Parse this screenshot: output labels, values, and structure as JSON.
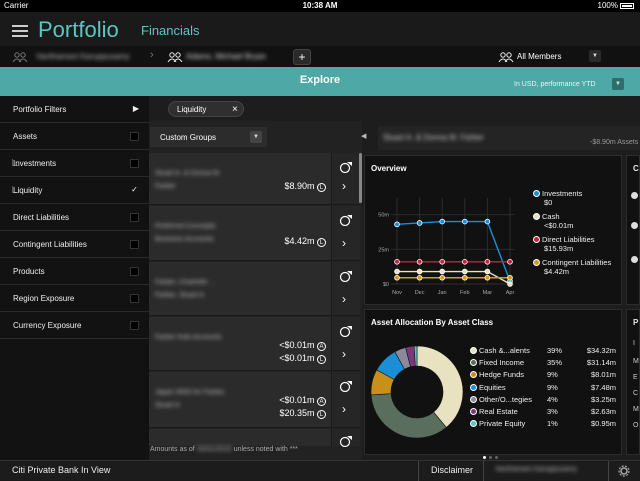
{
  "status": {
    "carrier": "Carrier",
    "time": "10:38 AM",
    "battery": "100%"
  },
  "app": {
    "title": "Portfolio",
    "subtitle": "Financials"
  },
  "clientbar": {
    "crumb1": "Vanthamani Karuppusamy",
    "crumb2": "Adams, Michael Bryan",
    "add": "+",
    "members": "All Members"
  },
  "explore": {
    "title": "Explore",
    "currency": "In USD, performance YTD"
  },
  "sidebar": {
    "filters_label": "Portfolio Filters",
    "items": [
      {
        "label": "Assets",
        "checked": false
      },
      {
        "label": "Investments",
        "checked": false
      },
      {
        "label": "Liquidity",
        "checked": true
      },
      {
        "label": "Direct Liabilities",
        "checked": false
      },
      {
        "label": "Contingent Liabilities",
        "checked": false
      },
      {
        "label": "Products",
        "checked": false
      },
      {
        "label": "Region Exposure",
        "checked": false
      },
      {
        "label": "Currency Exposure",
        "checked": false
      }
    ]
  },
  "filter_pill": {
    "label": "Liquidity",
    "close": "×"
  },
  "groups": {
    "header": "Custom Groups",
    "selected_name": "Stuart A. & Donna M. Farber",
    "selected_total": "-$8.90m Assets",
    "rows": [
      {
        "name1": "Stuart A. & Donna M.",
        "name2": "Farber",
        "values": [
          "$8.90m"
        ],
        "badges": [
          "L"
        ]
      },
      {
        "name1": "Preferred Concepts",
        "name2": "Business Accounts",
        "values": [
          "$4.42m"
        ],
        "badges": [
          "L"
        ]
      },
      {
        "name1": "Farber, Charlotte ...",
        "name2": "Farber, Stuart A",
        "values": [],
        "badges": []
      },
      {
        "name1": "Farber Kids Accounts",
        "name2": "",
        "values": [
          "<$0.01m",
          "<$0.01m"
        ],
        "badges": [
          "A",
          "L"
        ]
      },
      {
        "name1": "Japan 9093 for Farber,",
        "name2": "Stuart A",
        "values": [
          "<$0.01m",
          "$20.35m"
        ],
        "badges": [
          "A",
          "L"
        ]
      }
    ],
    "amounts_note_a": "Amounts as of",
    "amounts_note_date": "03/31/2015",
    "amounts_note_b": "unless noted with ***"
  },
  "overview": {
    "title": "Overview",
    "legend": [
      {
        "name": "Investments",
        "value": "$0",
        "color": "#1a8fd6"
      },
      {
        "name": "Cash",
        "value": "<$0.01m",
        "color": "#e8e2c0"
      },
      {
        "name": "Direct Liabilities",
        "value": "$15.93m",
        "color": "#c8203a"
      },
      {
        "name": "Contingent Liabilities",
        "value": "$4.42m",
        "color": "#d99a1c"
      }
    ]
  },
  "allocation": {
    "title": "Asset Allocation By Asset Class",
    "rows": [
      {
        "name": "Cash &...alents",
        "pct": "39%",
        "amt": "$34.32m",
        "color": "#e8e2c0"
      },
      {
        "name": "Fixed Income",
        "pct": "35%",
        "amt": "$31.14m",
        "color": "#5a6e5e"
      },
      {
        "name": "Hedge Funds",
        "pct": "9%",
        "amt": "$8.01m",
        "color": "#c8901a"
      },
      {
        "name": "Equities",
        "pct": "9%",
        "amt": "$7.48m",
        "color": "#1a8fd6"
      },
      {
        "name": "Other/O...tegies",
        "pct": "4%",
        "amt": "$3.25m",
        "color": "#8a8a9a"
      },
      {
        "name": "Real Estate",
        "pct": "3%",
        "amt": "$2.63m",
        "color": "#7a3a7a"
      },
      {
        "name": "Private Equity",
        "pct": "1%",
        "amt": "$0.95m",
        "color": "#5cc6c3"
      }
    ]
  },
  "chart_data": {
    "type": "line",
    "title": "Overview",
    "categories": [
      "Nov",
      "Dec",
      "Jan",
      "Feb",
      "Mar",
      "Apr"
    ],
    "yticks": [
      "50m",
      "25m",
      "$0"
    ],
    "ylim": [
      0,
      62
    ],
    "series": [
      {
        "name": "Investments",
        "values": [
          43,
          44,
          45,
          45,
          45,
          2
        ]
      },
      {
        "name": "Cash",
        "values": [
          9,
          9,
          9,
          9,
          9,
          0
        ]
      },
      {
        "name": "Direct Liabilities",
        "values": [
          16,
          16,
          16,
          16,
          16,
          16
        ]
      },
      {
        "name": "Contingent Liabilities",
        "values": [
          4.5,
          4.5,
          4.5,
          4.5,
          4.5,
          4.5
        ]
      }
    ]
  },
  "right_cards": {
    "c1": "C",
    "p1": "P",
    "i": "I",
    "m": "M",
    "e": "E",
    "c": "C",
    "m2": "M",
    "o": "O"
  },
  "footer": {
    "left": "Citi Private Bank In View",
    "disclaimer": "Disclaimer",
    "user": "Vanthamani Karuppusamy"
  }
}
